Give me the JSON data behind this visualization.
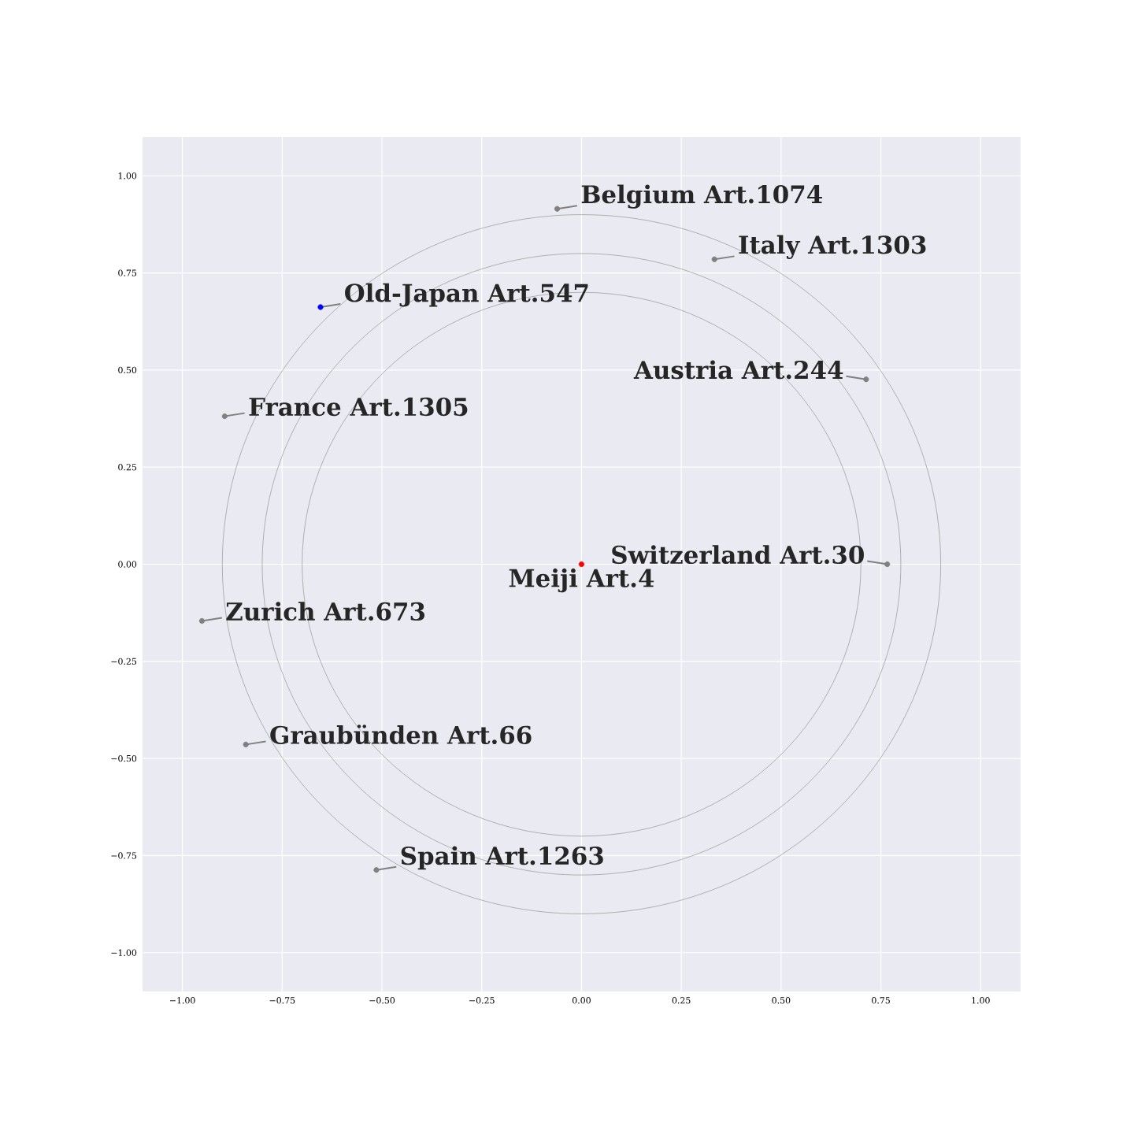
{
  "chart_data": {
    "type": "scatter",
    "xlim": [
      -1.1,
      1.1
    ],
    "ylim": [
      -1.1,
      1.1
    ],
    "xticks": [
      {
        "value": -1,
        "label": "−1.00"
      },
      {
        "value": -0.75,
        "label": "−0.75"
      },
      {
        "value": -0.5,
        "label": "−0.50"
      },
      {
        "value": -0.25,
        "label": "−0.25"
      },
      {
        "value": 0,
        "label": "0.00"
      },
      {
        "value": 0.25,
        "label": "0.25"
      },
      {
        "value": 0.5,
        "label": "0.50"
      },
      {
        "value": 0.75,
        "label": "0.75"
      },
      {
        "value": 1,
        "label": "1.00"
      }
    ],
    "yticks": [
      {
        "value": -1,
        "label": "−1.00"
      },
      {
        "value": -0.75,
        "label": "−0.75"
      },
      {
        "value": -0.5,
        "label": "−0.50"
      },
      {
        "value": -0.25,
        "label": "−0.25"
      },
      {
        "value": 0,
        "label": "0.00"
      },
      {
        "value": 0.25,
        "label": "0.25"
      },
      {
        "value": 0.5,
        "label": "0.50"
      },
      {
        "value": 0.75,
        "label": "0.75"
      },
      {
        "value": 1,
        "label": "1.00"
      }
    ],
    "grid": true,
    "series": [
      {
        "type": "scatter",
        "marker": "circle",
        "x": [
          0,
          -0.654,
          -0.061,
          0.333,
          0.713,
          -0.894,
          0.766,
          -0.951,
          -0.841,
          -0.514
        ],
        "values": [
          0,
          0.662,
          0.915,
          0.785,
          0.476,
          0.381,
          0,
          -0.146,
          -0.464,
          -0.787
        ],
        "colors": [
          "#ff0000",
          "#0000ff",
          "#808080",
          "#808080",
          "#808080",
          "#808080",
          "#808080",
          "#808080",
          "#808080",
          "#808080"
        ]
      }
    ],
    "annotations": [
      {
        "text": "Meiji Art.4",
        "x": 0,
        "y": 0
      },
      {
        "text": "Old-Japan Art.547",
        "x": -0.654,
        "y": 0.662
      },
      {
        "text": "Belgium Art.1074",
        "x": -0.061,
        "y": 0.915
      },
      {
        "text": "Italy Art.1303",
        "x": 0.333,
        "y": 0.785
      },
      {
        "text": "Austria Art.244",
        "x": 0.713,
        "y": 0.476
      },
      {
        "text": "France Art.1305",
        "x": -0.894,
        "y": 0.381
      },
      {
        "text": "Switzerland Art.30",
        "x": 0.766,
        "y": 0
      },
      {
        "text": "Zurich Art.673",
        "x": -0.951,
        "y": -0.146
      },
      {
        "text": "Graubünden Art.66",
        "x": -0.841,
        "y": -0.464
      },
      {
        "text": "Spain Art.1263",
        "x": -0.514,
        "y": -0.787
      }
    ]
  }
}
